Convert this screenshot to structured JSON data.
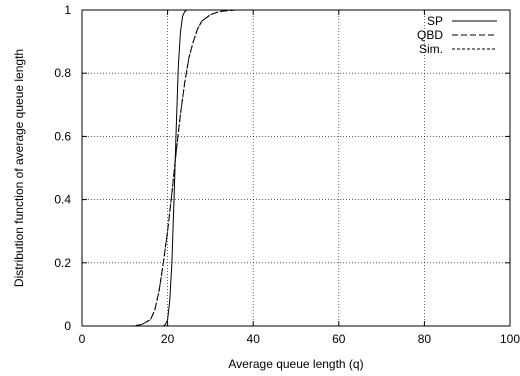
{
  "chart_data": {
    "type": "line",
    "title": "",
    "xlabel": "Average queue length (q)",
    "ylabel": "Distribution function of average queue length",
    "xlim": [
      0,
      100
    ],
    "ylim": [
      0,
      1
    ],
    "xticks": [
      0,
      20,
      40,
      60,
      80,
      100
    ],
    "xtick_labels": [
      "0",
      "20",
      "40",
      "60",
      "80",
      "100"
    ],
    "yticks": [
      0,
      0.2,
      0.4,
      0.6,
      0.8,
      1
    ],
    "ytick_labels": [
      "0",
      "0.2",
      "0.4",
      "0.6",
      "0.8",
      "1"
    ],
    "grid": true,
    "legend_position": "top-right",
    "series": [
      {
        "name": "SP",
        "dash": "solid",
        "x": [
          0,
          19,
          19.5,
          20,
          20.5,
          21,
          21.5,
          22,
          22.5,
          23,
          23.5,
          24,
          24.5,
          25,
          100
        ],
        "y": [
          0,
          0,
          0.005,
          0.02,
          0.08,
          0.2,
          0.4,
          0.62,
          0.82,
          0.93,
          0.98,
          0.995,
          1,
          1,
          1
        ]
      },
      {
        "name": "QBD",
        "dash": "long-dash",
        "x": [
          0,
          12,
          14,
          16,
          17,
          18,
          19,
          20,
          21,
          22,
          23,
          24,
          25,
          26,
          27,
          28,
          30,
          32,
          34,
          36,
          40,
          100
        ],
        "y": [
          0,
          0,
          0.005,
          0.02,
          0.05,
          0.11,
          0.2,
          0.3,
          0.42,
          0.55,
          0.67,
          0.77,
          0.85,
          0.9,
          0.94,
          0.965,
          0.985,
          0.995,
          0.998,
          1,
          1,
          1
        ]
      },
      {
        "name": "Sim.",
        "dash": "short-dash",
        "x": [
          0,
          12,
          14,
          16,
          17,
          18,
          19,
          20,
          21,
          22,
          23,
          24,
          25,
          26,
          27,
          28,
          30,
          32,
          34,
          36,
          40,
          100
        ],
        "y": [
          0,
          0,
          0.005,
          0.02,
          0.05,
          0.11,
          0.2,
          0.3,
          0.42,
          0.55,
          0.67,
          0.77,
          0.85,
          0.9,
          0.94,
          0.965,
          0.985,
          0.995,
          0.998,
          1,
          1,
          1
        ]
      }
    ]
  }
}
